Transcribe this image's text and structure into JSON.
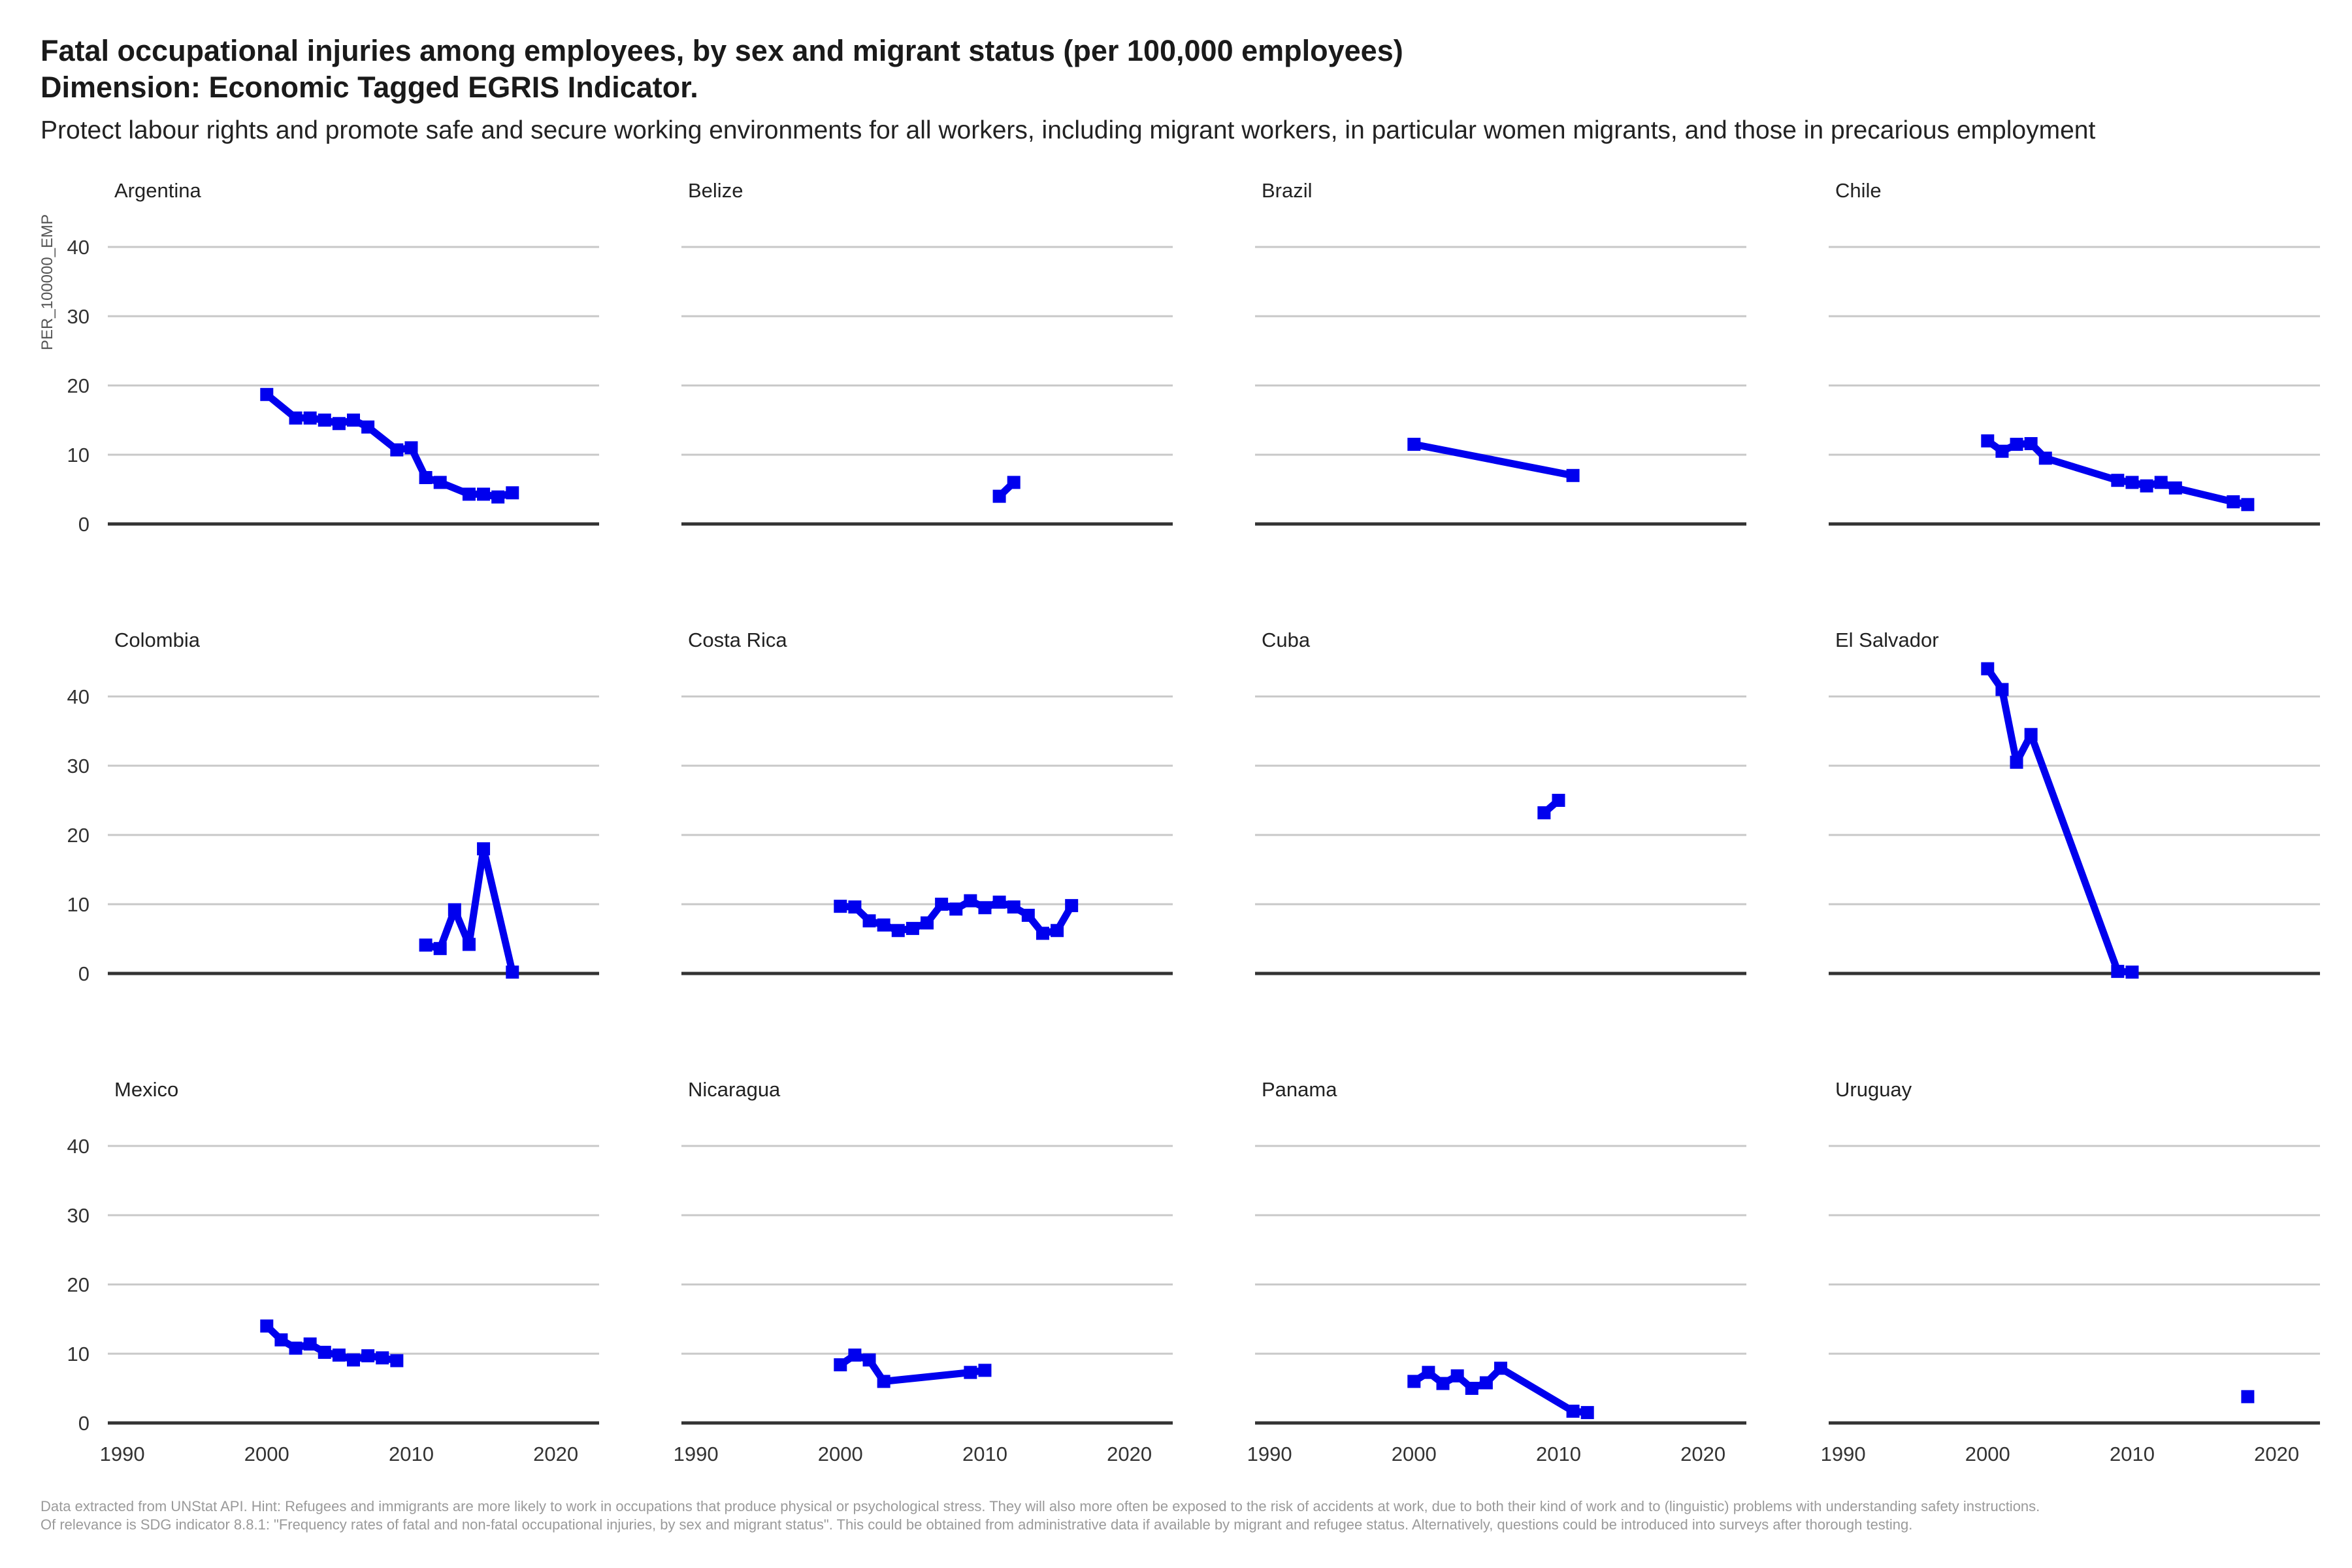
{
  "title_line1": "Fatal occupational injuries among employees, by sex and migrant status (per 100,000 employees)",
  "title_line2": "Dimension: Economic Tagged EGRIS Indicator.",
  "subtitle": "Protect labour rights and promote safe and secure working environments for all workers, including migrant workers, in particular women migrants, and those in precarious employment",
  "caption": [
    "Data extracted from UNStat API. Hint: Refugees and immigrants are more likely to work in occupations that produce physical or psychological stress. They will also more often be exposed to the risk of accidents at work, due to both their kind of work and to (linguistic) problems with understanding safety instructions.",
    "Of relevance is SDG indicator 8.8.1: \"Frequency rates of fatal and non-fatal occupational injuries, by sex and migrant status\". This could be obtained from administrative data if available by migrant and refugee status. Alternatively, questions could be introduced into surveys after thorough testing."
  ],
  "colors": {
    "series": "#0000ee",
    "grid": "#c8c8c8",
    "zero_line": "#333333"
  },
  "chart_data": {
    "type": "line",
    "layout": "facet grid 3 rows x 4 columns",
    "ylabel": "PER_100000_EMP",
    "xlim": [
      1989,
      2023
    ],
    "ylim": [
      0,
      44
    ],
    "x_ticks": [
      1990,
      2000,
      2010,
      2020
    ],
    "y_ticks": [
      0,
      10,
      20,
      30,
      40
    ],
    "grid": "horizontal",
    "markers": "square",
    "panels": [
      {
        "name": "Argentina",
        "x": [
          2000,
          2002,
          2003,
          2004,
          2005,
          2006,
          2007,
          2009,
          2010,
          2011,
          2012,
          2014,
          2015,
          2016,
          2017
        ],
        "y": [
          18.7,
          15.3,
          15.3,
          15.0,
          14.5,
          15.0,
          14.0,
          10.7,
          11.0,
          6.7,
          6.0,
          4.3,
          4.3,
          3.9,
          4.5
        ]
      },
      {
        "name": "Belize",
        "x": [
          2011,
          2012
        ],
        "y": [
          4.0,
          6.0
        ]
      },
      {
        "name": "Brazil",
        "x": [
          2000,
          2011
        ],
        "y": [
          11.5,
          7.0
        ]
      },
      {
        "name": "Chile",
        "x": [
          2000,
          2001,
          2002,
          2003,
          2004,
          2009,
          2010,
          2011,
          2012,
          2013,
          2017,
          2018
        ],
        "y": [
          12.0,
          10.5,
          11.5,
          11.6,
          9.5,
          6.3,
          6.0,
          5.5,
          6.0,
          5.2,
          3.2,
          2.8
        ]
      },
      {
        "name": "Colombia",
        "x": [
          2011,
          2012,
          2013,
          2014,
          2015,
          2017
        ],
        "y": [
          4.1,
          3.6,
          9.2,
          4.2,
          18.0,
          0.2
        ]
      },
      {
        "name": "Costa Rica",
        "x": [
          2000,
          2001,
          2002,
          2003,
          2004,
          2005,
          2006,
          2007,
          2008,
          2009,
          2010,
          2011,
          2012,
          2013,
          2014,
          2015,
          2016
        ],
        "y": [
          9.7,
          9.6,
          7.6,
          7.0,
          6.2,
          6.5,
          7.3,
          10.0,
          9.3,
          10.5,
          9.5,
          10.3,
          9.6,
          8.4,
          5.8,
          6.2,
          9.8
        ]
      },
      {
        "name": "Cuba",
        "x": [
          2009,
          2010
        ],
        "y": [
          23.2,
          25.0
        ]
      },
      {
        "name": "El Salvador",
        "x": [
          2000,
          2001,
          2002,
          2003,
          2009,
          2010
        ],
        "y": [
          44.0,
          41.0,
          30.5,
          34.5,
          0.3,
          0.2
        ]
      },
      {
        "name": "Mexico",
        "x": [
          2000,
          2001,
          2002,
          2003,
          2004,
          2005,
          2006,
          2007,
          2008,
          2009
        ],
        "y": [
          14.0,
          12.0,
          10.8,
          11.4,
          10.2,
          9.8,
          9.1,
          9.7,
          9.4,
          9.0
        ]
      },
      {
        "name": "Nicaragua",
        "x": [
          2000,
          2001,
          2002,
          2003,
          2009,
          2010
        ],
        "y": [
          8.4,
          9.8,
          9.1,
          6.0,
          7.3,
          7.6
        ]
      },
      {
        "name": "Panama",
        "x": [
          2000,
          2001,
          2002,
          2003,
          2004,
          2005,
          2006,
          2011,
          2012
        ],
        "y": [
          6.0,
          7.3,
          5.7,
          6.8,
          5.0,
          5.8,
          7.9,
          1.7,
          1.5
        ]
      },
      {
        "name": "Uruguay",
        "x": [
          2018
        ],
        "y": [
          3.8
        ]
      }
    ]
  }
}
